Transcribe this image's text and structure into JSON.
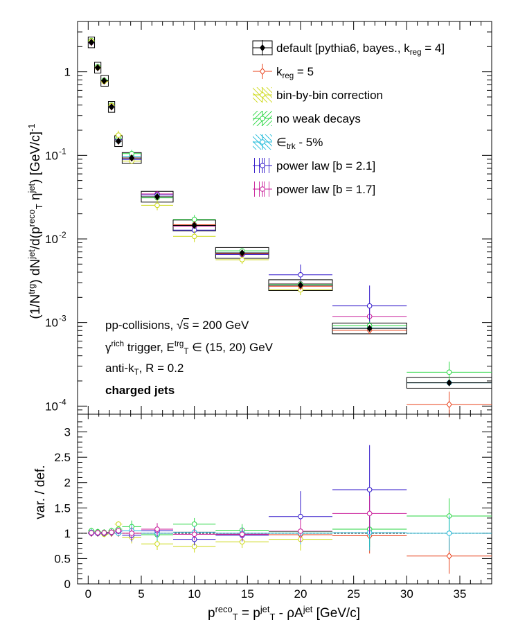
{
  "chart_data": [
    {
      "type": "scatter",
      "xlim": [
        -1,
        38
      ],
      "ylim": [
        8e-05,
        4
      ],
      "yscale": "log",
      "ylabel_parts": [
        "(1/N",
        "trg",
        ") dN",
        "jet",
        "/d(p",
        "reco",
        "T",
        " η",
        "jet",
        ") [GeV/c]",
        "-1"
      ],
      "y_ticks": [
        {
          "v": 1,
          "label": "1"
        },
        {
          "v": 0.1,
          "base": "10",
          "exp": "-1"
        },
        {
          "v": 0.01,
          "base": "10",
          "exp": "-2"
        },
        {
          "v": 0.001,
          "base": "10",
          "exp": "-3"
        },
        {
          "v": 0.0001,
          "base": "10",
          "exp": "-4"
        }
      ],
      "legend_position": "top-right",
      "bins": [
        {
          "lo": 0,
          "hi": 0.6
        },
        {
          "lo": 0.6,
          "hi": 1.2
        },
        {
          "lo": 1.2,
          "hi": 1.9
        },
        {
          "lo": 1.9,
          "hi": 2.5
        },
        {
          "lo": 2.5,
          "hi": 3.2
        },
        {
          "lo": 3.2,
          "hi": 5
        },
        {
          "lo": 5,
          "hi": 8
        },
        {
          "lo": 8,
          "hi": 12
        },
        {
          "lo": 12,
          "hi": 17
        },
        {
          "lo": 17,
          "hi": 23
        },
        {
          "lo": 23,
          "hi": 30
        },
        {
          "lo": 30,
          "hi": 38
        }
      ],
      "default_points": {
        "x": [
          0.3,
          0.9,
          1.5,
          2.2,
          2.85,
          4.1,
          6.5,
          10,
          14.5,
          20,
          26.5,
          34
        ],
        "y": [
          2.25,
          1.12,
          0.78,
          0.38,
          0.148,
          0.093,
          0.032,
          0.0145,
          0.0068,
          0.0028,
          0.00085,
          0.00019
        ]
      },
      "annotations": [
        {
          "parts": [
            {
              "t": "pp-collisions, "
            },
            {
              "t": "√",
              "kind": "sqrt"
            },
            {
              "t": "s",
              "kind": "over"
            },
            {
              "t": " = 200 GeV"
            }
          ]
        },
        {
          "parts": [
            {
              "t": "γ"
            },
            {
              "t": "rich",
              "kind": "sup"
            },
            {
              "t": " trigger, E"
            },
            {
              "t": "trg",
              "kind": "sup"
            },
            {
              "t": "T",
              "kind": "sub"
            },
            {
              "t": " ∈ (15, 20) GeV"
            }
          ]
        },
        {
          "parts": [
            {
              "t": "anti-k"
            },
            {
              "t": "T",
              "kind": "sub"
            },
            {
              "t": ", R = 0.2"
            }
          ]
        },
        {
          "parts": [
            {
              "t": "charged jets",
              "kind": "bold"
            }
          ]
        }
      ]
    },
    {
      "type": "scatter",
      "xlim": [
        -1,
        38
      ],
      "ylim": [
        0,
        3.35
      ],
      "ylabel": "var. / def.",
      "xlabel_parts": [
        "p",
        "reco",
        "T",
        " = p",
        "jet",
        "T",
        " - ρA",
        "jet",
        " [GeV/c]"
      ],
      "x_ticks": [
        0,
        5,
        10,
        15,
        20,
        25,
        30,
        35
      ],
      "y_ticks": [
        "0",
        "0.5",
        "1",
        "1.5",
        "2",
        "2.5",
        "3"
      ],
      "reference_line": 1
    }
  ],
  "series": [
    {
      "name_parts": [
        "default [pythia6, bayes., k",
        "reg",
        " = 4]"
      ],
      "color": "#000000",
      "marker": "diamond-filled",
      "hatch": "none",
      "ratio": []
    },
    {
      "name_parts": [
        "k",
        "reg",
        " = 5"
      ],
      "color": "#e8401a",
      "marker": "diamond-open",
      "hatch": "none",
      "ratio": [
        1.0,
        1.0,
        1.0,
        1.0,
        1.0,
        1.0,
        1.0,
        1.02,
        0.98,
        0.97,
        0.95,
        0.55
      ]
    },
    {
      "name_parts": [
        "bin-by-bin correction"
      ],
      "color": "#ccd812",
      "marker": "circle-open",
      "hatch": "down",
      "ratio": [
        1.04,
        1.0,
        0.98,
        1.04,
        1.18,
        0.92,
        0.79,
        0.74,
        0.83,
        0.88,
        null,
        null
      ]
    },
    {
      "name_parts": [
        "no weak decays"
      ],
      "color": "#27d640",
      "marker": "circle-open",
      "hatch": "up",
      "ratio": [
        1.05,
        1.03,
        1.02,
        1.05,
        1.08,
        1.13,
        0.97,
        1.18,
        1.06,
        1.03,
        1.08,
        1.34
      ]
    },
    {
      "name_parts": [
        "∈",
        "trk",
        " - 5%"
      ],
      "color": "#1ab8d8",
      "marker": "circle-open",
      "hatch": "down",
      "ratio": [
        1.02,
        1.0,
        1.0,
        1.01,
        1.0,
        1.05,
        1.0,
        1.02,
        1.0,
        1.0,
        1.01,
        1.0
      ]
    },
    {
      "name_parts": [
        "power law [b = 2.1]"
      ],
      "color": "#2b10c8",
      "marker": "circle-open",
      "hatch": "vert",
      "ratio": [
        1.0,
        1.0,
        1.0,
        1.02,
        1.04,
        0.96,
        1.05,
        0.88,
        0.96,
        1.33,
        1.86,
        null
      ]
    },
    {
      "name_parts": [
        "power law [b = 1.7]"
      ],
      "color": "#c81a98",
      "marker": "circle-open",
      "hatch": "vert",
      "ratio": [
        1.01,
        1.01,
        1.01,
        1.02,
        1.05,
        1.0,
        1.08,
        0.98,
        0.98,
        1.04,
        1.39,
        null
      ]
    }
  ]
}
